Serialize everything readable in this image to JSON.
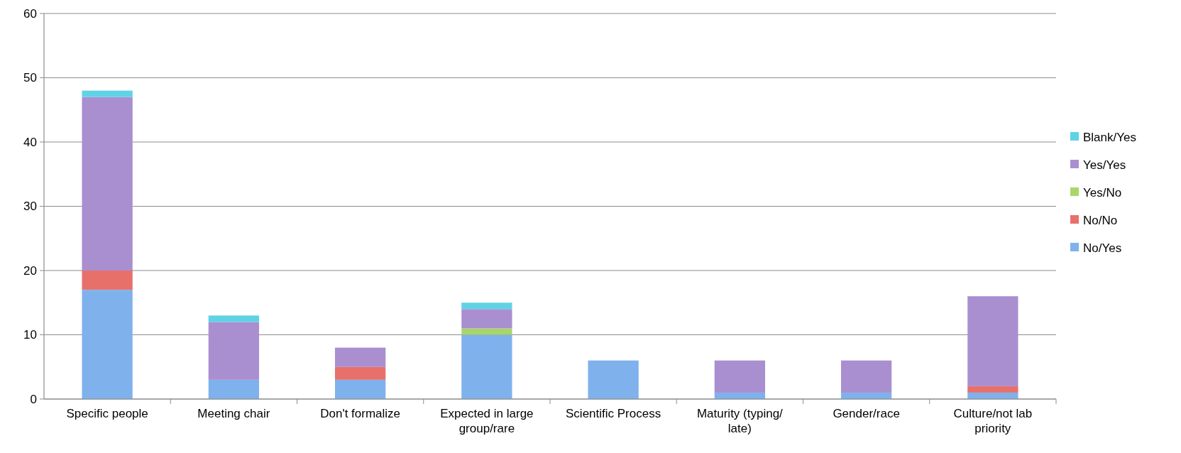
{
  "chart_data": {
    "type": "bar",
    "stacked": true,
    "categories": [
      "Specific people",
      "Meeting chair",
      "Don't formalize",
      "Expected in large group/rare",
      "Scientific Process",
      "Maturity (typing/ late)",
      "Gender/race",
      "Culture/not lab priority"
    ],
    "series": [
      {
        "name": "No/Yes",
        "color": "#7fb2ec",
        "values": [
          17,
          3,
          3,
          10,
          6,
          1,
          1,
          1
        ]
      },
      {
        "name": "No/No",
        "color": "#e8706b",
        "values": [
          3,
          0,
          2,
          0,
          0,
          0,
          0,
          1
        ]
      },
      {
        "name": "Yes/No",
        "color": "#a9d66a",
        "values": [
          0,
          0,
          0,
          1,
          0,
          0,
          0,
          0
        ]
      },
      {
        "name": "Yes/Yes",
        "color": "#a98fd0",
        "values": [
          27,
          9,
          3,
          3,
          0,
          5,
          5,
          14
        ]
      },
      {
        "name": "Blank/Yes",
        "color": "#5fd3e5",
        "values": [
          1,
          1,
          0,
          1,
          0,
          0,
          0,
          0
        ]
      }
    ],
    "ylim": [
      0,
      60
    ],
    "yticks": [
      0,
      10,
      20,
      30,
      40,
      50,
      60
    ],
    "grid": "y",
    "legend": "right"
  }
}
